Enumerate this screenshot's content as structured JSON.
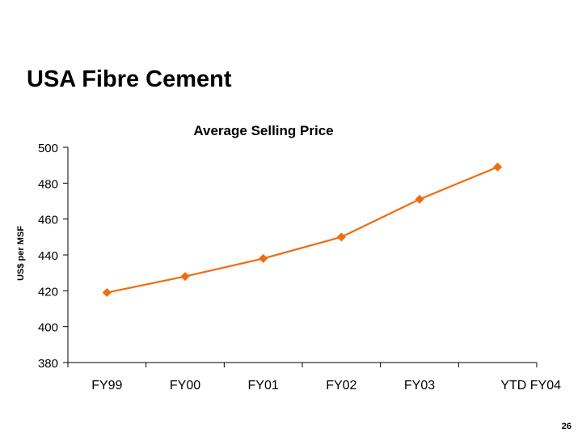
{
  "slide": {
    "title": "USA Fibre Cement",
    "page_number": "26"
  },
  "colors": {
    "series": "#F26B0C",
    "axis": "#000000",
    "background": "#FFFFFF"
  },
  "chart_data": {
    "type": "line",
    "title": "Average Selling Price",
    "xlabel": "",
    "ylabel": "US$ per MSF",
    "categories": [
      "FY99",
      "FY00",
      "FY01",
      "FY02",
      "FY03",
      "YTD FY04"
    ],
    "series": [
      {
        "values": [
          419,
          428,
          438,
          450,
          471,
          489
        ],
        "marker": "diamond",
        "color": "#F26B0C"
      }
    ],
    "ylim": [
      380,
      500
    ],
    "yticks": [
      380,
      400,
      420,
      440,
      460,
      480,
      500
    ],
    "grid": false,
    "legend": "none"
  }
}
